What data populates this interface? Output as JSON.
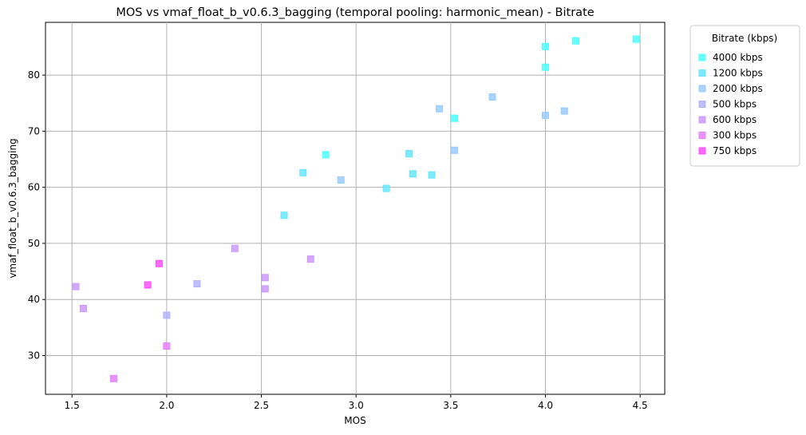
{
  "chart_data": {
    "type": "scatter",
    "title": "MOS vs vmaf_float_b_v0.6.3_bagging (temporal pooling: harmonic_mean) - Bitrate",
    "xlabel": "MOS",
    "ylabel": "vmaf_float_b_v0.6.3_bagging",
    "xlim": [
      1.36,
      4.63
    ],
    "ylim": [
      23.1,
      89.4
    ],
    "xticks": [
      "1.5",
      "2.0",
      "2.5",
      "3.0",
      "3.5",
      "4.0",
      "4.5"
    ],
    "yticks": [
      "30",
      "40",
      "50",
      "60",
      "70",
      "80"
    ],
    "grid": true,
    "marker": "square",
    "legend": {
      "title": "Bitrate (kbps)",
      "placement": "outside-top-right"
    },
    "series": [
      {
        "name": "4000 kbps",
        "color": "#4dffff",
        "points": [
          [
            4.48,
            86.4
          ],
          [
            4.16,
            86.1
          ],
          [
            4.0,
            85.1
          ],
          [
            4.0,
            81.4
          ],
          [
            3.52,
            72.3
          ],
          [
            2.84,
            65.8
          ]
        ]
      },
      {
        "name": "1200 kbps",
        "color": "#66e6ff",
        "points": [
          [
            3.28,
            66.0
          ],
          [
            2.72,
            62.6
          ],
          [
            3.3,
            62.4
          ],
          [
            3.4,
            62.2
          ],
          [
            3.16,
            59.8
          ],
          [
            2.62,
            55.0
          ]
        ]
      },
      {
        "name": "2000 kbps",
        "color": "#99ccff",
        "points": [
          [
            3.44,
            74.0
          ],
          [
            3.72,
            76.1
          ],
          [
            4.0,
            72.8
          ],
          [
            4.1,
            73.6
          ],
          [
            3.52,
            66.6
          ],
          [
            2.92,
            61.3
          ]
        ]
      },
      {
        "name": "500 kbps",
        "color": "#b3b3ff",
        "points": [
          [
            2.16,
            42.8
          ],
          [
            2.0,
            37.2
          ]
        ]
      },
      {
        "name": "600 kbps",
        "color": "#cc99ff",
        "points": [
          [
            2.36,
            49.1
          ],
          [
            2.76,
            47.2
          ],
          [
            2.52,
            43.9
          ],
          [
            2.52,
            41.9
          ],
          [
            1.52,
            42.3
          ],
          [
            1.56,
            38.4
          ]
        ]
      },
      {
        "name": "300 kbps",
        "color": "#e680ff",
        "points": [
          [
            2.0,
            31.7
          ],
          [
            1.72,
            25.9
          ]
        ]
      },
      {
        "name": "750 kbps",
        "color": "#ff4dff",
        "points": [
          [
            1.96,
            46.4
          ],
          [
            1.9,
            42.6
          ]
        ]
      }
    ]
  }
}
